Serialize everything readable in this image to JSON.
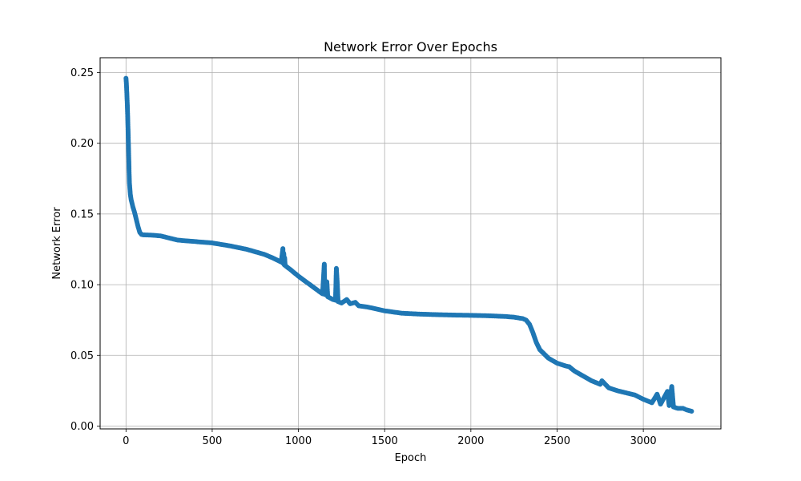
{
  "chart_data": {
    "type": "line",
    "title": "Network Error Over Epochs",
    "xlabel": "Epoch",
    "ylabel": "Network Error",
    "xlim": [
      -150,
      3450
    ],
    "ylim": [
      -0.002,
      0.2605
    ],
    "xticks": [
      0,
      500,
      1000,
      1500,
      2000,
      2500,
      3000
    ],
    "xtick_labels": [
      "0",
      "500",
      "1000",
      "1500",
      "2000",
      "2500",
      "3000"
    ],
    "yticks": [
      0.0,
      0.05,
      0.1,
      0.15,
      0.2,
      0.25
    ],
    "ytick_labels": [
      "0.00",
      "0.05",
      "0.10",
      "0.15",
      "0.20",
      "0.25"
    ],
    "grid": true,
    "legend": "none",
    "marker": "circle",
    "color": "#1f77b4",
    "series": [
      {
        "points": [
          [
            0,
            0.246
          ],
          [
            2,
            0.243
          ],
          [
            4,
            0.238
          ],
          [
            6,
            0.232
          ],
          [
            8,
            0.226
          ],
          [
            10,
            0.218
          ],
          [
            12,
            0.209
          ],
          [
            14,
            0.2
          ],
          [
            16,
            0.19
          ],
          [
            18,
            0.18
          ],
          [
            20,
            0.172
          ],
          [
            25,
            0.164
          ],
          [
            30,
            0.16
          ],
          [
            40,
            0.155
          ],
          [
            50,
            0.151
          ],
          [
            60,
            0.146
          ],
          [
            70,
            0.141
          ],
          [
            80,
            0.137
          ],
          [
            90,
            0.1355
          ],
          [
            100,
            0.1352
          ],
          [
            150,
            0.135
          ],
          [
            200,
            0.1345
          ],
          [
            250,
            0.133
          ],
          [
            300,
            0.1315
          ],
          [
            400,
            0.1305
          ],
          [
            500,
            0.1295
          ],
          [
            600,
            0.1275
          ],
          [
            700,
            0.125
          ],
          [
            800,
            0.1215
          ],
          [
            850,
            0.119
          ],
          [
            900,
            0.116
          ],
          [
            910,
            0.1255
          ],
          [
            912,
            0.115
          ],
          [
            915,
            0.122
          ],
          [
            918,
            0.114
          ],
          [
            920,
            0.119
          ],
          [
            923,
            0.1135
          ],
          [
            950,
            0.111
          ],
          [
            1000,
            0.106
          ],
          [
            1050,
            0.1015
          ],
          [
            1100,
            0.097
          ],
          [
            1140,
            0.0935
          ],
          [
            1150,
            0.1145
          ],
          [
            1153,
            0.093
          ],
          [
            1160,
            0.098
          ],
          [
            1165,
            0.102
          ],
          [
            1170,
            0.0915
          ],
          [
            1200,
            0.0895
          ],
          [
            1215,
            0.089
          ],
          [
            1220,
            0.1115
          ],
          [
            1225,
            0.1015
          ],
          [
            1230,
            0.088
          ],
          [
            1250,
            0.087
          ],
          [
            1280,
            0.0895
          ],
          [
            1300,
            0.0865
          ],
          [
            1330,
            0.0875
          ],
          [
            1350,
            0.085
          ],
          [
            1400,
            0.0842
          ],
          [
            1500,
            0.0815
          ],
          [
            1600,
            0.0798
          ],
          [
            1700,
            0.0792
          ],
          [
            1800,
            0.0788
          ],
          [
            1900,
            0.0785
          ],
          [
            2000,
            0.0783
          ],
          [
            2100,
            0.078
          ],
          [
            2200,
            0.0775
          ],
          [
            2250,
            0.077
          ],
          [
            2300,
            0.076
          ],
          [
            2320,
            0.075
          ],
          [
            2340,
            0.072
          ],
          [
            2360,
            0.066
          ],
          [
            2380,
            0.059
          ],
          [
            2400,
            0.054
          ],
          [
            2450,
            0.048
          ],
          [
            2500,
            0.0445
          ],
          [
            2550,
            0.0425
          ],
          [
            2570,
            0.042
          ],
          [
            2600,
            0.039
          ],
          [
            2650,
            0.0355
          ],
          [
            2700,
            0.032
          ],
          [
            2750,
            0.0295
          ],
          [
            2760,
            0.032
          ],
          [
            2800,
            0.027
          ],
          [
            2850,
            0.025
          ],
          [
            2900,
            0.0235
          ],
          [
            2950,
            0.022
          ],
          [
            3000,
            0.019
          ],
          [
            3050,
            0.0165
          ],
          [
            3080,
            0.0225
          ],
          [
            3100,
            0.0155
          ],
          [
            3140,
            0.0245
          ],
          [
            3150,
            0.0145
          ],
          [
            3165,
            0.028
          ],
          [
            3175,
            0.0135
          ],
          [
            3200,
            0.0125
          ],
          [
            3230,
            0.0125
          ],
          [
            3250,
            0.0115
          ],
          [
            3280,
            0.0105
          ]
        ]
      }
    ]
  }
}
